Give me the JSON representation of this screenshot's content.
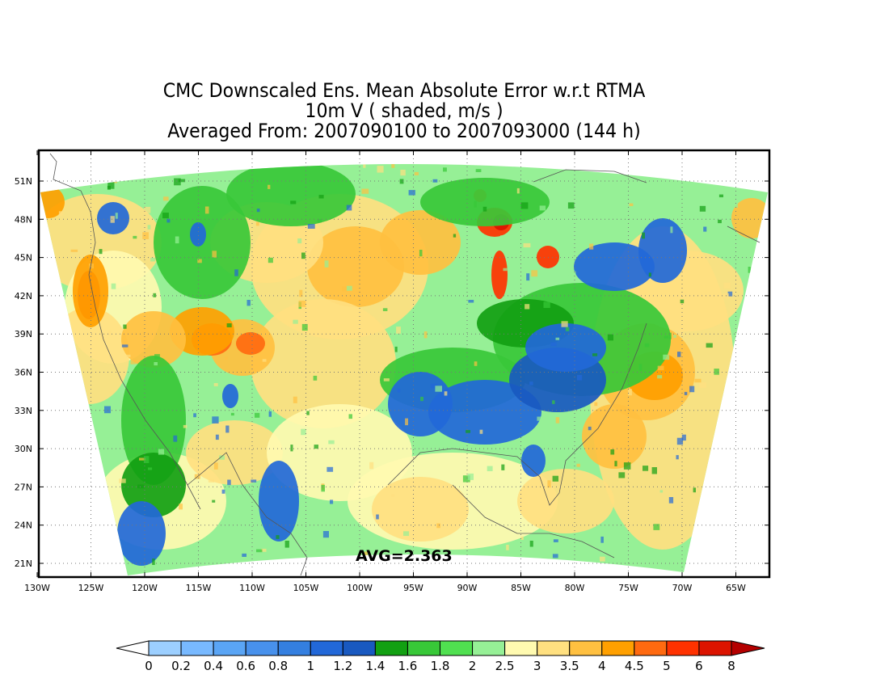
{
  "title": {
    "line1": "CMC Downscaled Ens. Mean Absolute Error w.r.t RTMA",
    "line2": "10m V ( shaded, m/s )",
    "line3": "Averaged From: 2007090100 to 2007093000 (144 h)"
  },
  "map": {
    "lat_labels": [
      "51N",
      "48N",
      "45N",
      "42N",
      "39N",
      "36N",
      "33N",
      "30N",
      "27N",
      "24N",
      "21N"
    ],
    "lon_labels": [
      "130W",
      "125W",
      "120W",
      "115W",
      "110W",
      "105W",
      "100W",
      "95W",
      "90W",
      "85W",
      "80W",
      "75W",
      "70W",
      "65W"
    ],
    "avg_text": "AVG=2.363",
    "grid": true
  },
  "colorbar": {
    "labels": [
      "0",
      "0.2",
      "0.4",
      "0.6",
      "0.8",
      "1",
      "1.2",
      "1.4",
      "1.6",
      "1.8",
      "2",
      "2.5",
      "3",
      "3.5",
      "4",
      "4.5",
      "5",
      "6",
      "8"
    ],
    "colors": [
      "#9ccfff",
      "#78b9ff",
      "#5aa5f5",
      "#4891ec",
      "#347fe0",
      "#2268d8",
      "#1959c0",
      "#12a012",
      "#38c838",
      "#50e050",
      "#96f096",
      "#fffab0",
      "#ffe080",
      "#ffc040",
      "#ffa000",
      "#ff6a10",
      "#ff3200",
      "#dc1400",
      "#b40000"
    ],
    "under_color": "#ffffff",
    "over_color": "#b40000"
  },
  "map_colors": {
    "blue": "#2268d8",
    "green_dark": "#12a012",
    "green": "#38c838",
    "green_light": "#96f096",
    "yellow": "#fffab0",
    "orange_light": "#ffc040",
    "orange": "#ffa000",
    "red": "#ff3200"
  }
}
